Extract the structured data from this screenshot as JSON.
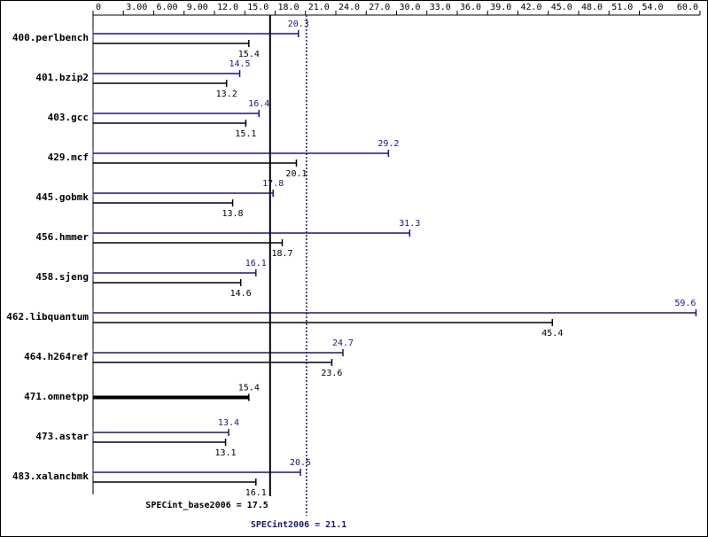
{
  "chart_data": {
    "type": "bar",
    "categories": [
      "400.perlbench",
      "401.bzip2",
      "403.gcc",
      "429.mcf",
      "445.gobmk",
      "456.hmmer",
      "458.sjeng",
      "462.libquantum",
      "464.h264ref",
      "471.omnetpp",
      "473.astar",
      "483.xalancbmk"
    ],
    "series": [
      {
        "color": "#191970",
        "values": [
          20.3,
          14.5,
          16.4,
          29.2,
          17.8,
          31.3,
          16.1,
          59.6,
          24.7,
          null,
          13.4,
          20.5
        ]
      },
      {
        "color": "#000000",
        "values": [
          15.4,
          13.2,
          15.1,
          20.1,
          13.8,
          18.7,
          14.6,
          45.4,
          23.6,
          15.4,
          13.1,
          16.1
        ]
      }
    ],
    "xlim": [
      0,
      60
    ],
    "xticks": [
      0,
      {
        "value": 3,
        "label": "3.00"
      },
      {
        "value": 6,
        "label": "6.00"
      },
      {
        "value": 9,
        "label": "9.00"
      },
      {
        "value": 12,
        "label": "12.0"
      },
      {
        "value": 15,
        "label": "15.0"
      },
      {
        "value": 18,
        "label": "18.0"
      },
      {
        "value": 21,
        "label": "21.0"
      },
      {
        "value": 24,
        "label": "24.0"
      },
      {
        "value": 27,
        "label": "27.0"
      },
      {
        "value": 30,
        "label": "30.0"
      },
      {
        "value": 33,
        "label": "33.0"
      },
      {
        "value": 36,
        "label": "36.0"
      },
      {
        "value": 39,
        "label": "39.0"
      },
      {
        "value": 42,
        "label": "42.0"
      },
      {
        "value": 45,
        "label": "45.0"
      },
      {
        "value": 48,
        "label": "48.0"
      },
      {
        "value": 51,
        "label": "51.0"
      },
      {
        "value": 54,
        "label": "54.0"
      },
      {
        "value": 60,
        "label": "60.0"
      }
    ],
    "references": [
      {
        "label": "SPECint_base2006 = 17.5",
        "value": 17.5,
        "color": "#000000"
      },
      {
        "label": "SPECint2006 = 21.1",
        "value": 21.1,
        "color": "#191970"
      }
    ]
  }
}
